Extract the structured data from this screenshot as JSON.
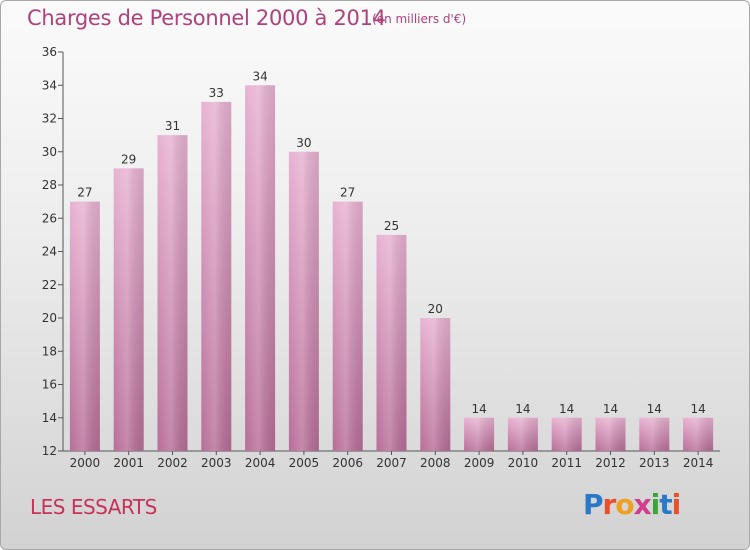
{
  "header": {
    "title": "Charges de Personnel 2000 à 2014",
    "subtitle": "(en milliers d'€)"
  },
  "footer": {
    "place": "LES ESSARTS",
    "logo_text": "Proxiti",
    "logo_colors": [
      "#2a78c8",
      "#e8502a",
      "#f0a020",
      "#d23c8c",
      "#3aa63a",
      "#2a78c8",
      "#e8502a"
    ]
  },
  "chart_data": {
    "type": "bar",
    "categories": [
      "2000",
      "2001",
      "2002",
      "2003",
      "2004",
      "2005",
      "2006",
      "2007",
      "2008",
      "2009",
      "2010",
      "2011",
      "2012",
      "2013",
      "2014"
    ],
    "values": [
      27,
      29,
      31,
      33,
      34,
      30,
      27,
      25,
      20,
      14,
      14,
      14,
      14,
      14,
      14
    ],
    "ylim": [
      12,
      36
    ],
    "yticks": [
      12,
      14,
      16,
      18,
      20,
      22,
      24,
      26,
      28,
      30,
      32,
      34,
      36
    ],
    "title": "Charges de Personnel 2000 à 2014",
    "xlabel": "",
    "ylabel": "",
    "grid": false,
    "bar_color": "#d58fb6"
  }
}
